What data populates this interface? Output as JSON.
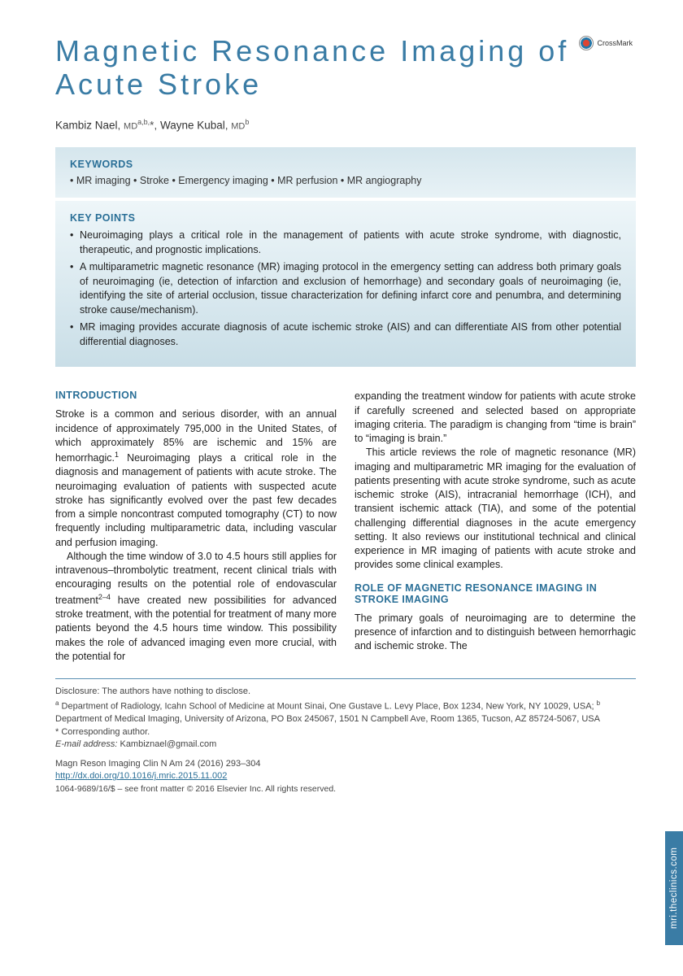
{
  "title": "Magnetic Resonance Imaging of Acute Stroke",
  "crossmark_label": "CrossMark",
  "authors_html": "Kambiz Nael, MD a,b,*, Wayne Kubal, MD b",
  "authors": [
    {
      "name": "Kambiz Nael",
      "degree": "MD",
      "affil": "a,b,",
      "corr": "*"
    },
    {
      "name": "Wayne Kubal",
      "degree": "MD",
      "affil": "b",
      "corr": ""
    }
  ],
  "keywords": {
    "label": "KEYWORDS",
    "line": "• MR imaging • Stroke • Emergency imaging • MR perfusion • MR angiography"
  },
  "keypoints": {
    "label": "KEY POINTS",
    "items": [
      "Neuroimaging plays a critical role in the management of patients with acute stroke syndrome, with diagnostic, therapeutic, and prognostic implications.",
      "A multiparametric magnetic resonance (MR) imaging protocol in the emergency setting can address both primary goals of neuroimaging (ie, detection of infarction and exclusion of hemorrhage) and secondary goals of neuroimaging (ie, identifying the site of arterial occlusion, tissue characterization for defining infarct core and penumbra, and determining stroke cause/mechanism).",
      "MR imaging provides accurate diagnosis of acute ischemic stroke (AIS) and can differentiate AIS from other potential differential diagnoses."
    ]
  },
  "body": {
    "intro_heading": "INTRODUCTION",
    "intro_p1_a": "Stroke is a common and serious disorder, with an annual incidence of approximately 795,000 in the United States, of which approximately 85% are ischemic and 15% are hemorrhagic.",
    "intro_p1_ref1": "1",
    "intro_p1_b": " Neuroimaging plays a critical role in the diagnosis and management of patients with acute stroke. The neuroimaging evaluation of patients with suspected acute stroke has significantly evolved over the past few decades from a simple noncontrast computed tomography (CT) to now frequently including multiparametric data, including vascular and perfusion imaging.",
    "intro_p2_a": "Although the time window of 3.0 to 4.5 hours still applies for intravenous–thrombolytic treatment, recent clinical trials with encouraging results on the potential role of endovascular treatment",
    "intro_p2_ref": "2–4",
    "intro_p2_b": " have created new possibilities for advanced stroke treatment, with the potential for treatment of many more patients beyond the 4.5 hours time window. This possibility makes the role of advanced imaging even more crucial, with the potential for",
    "col2_p1": "expanding the treatment window for patients with acute stroke if carefully screened and selected based on appropriate imaging criteria. The paradigm is changing from “time is brain” to “imaging is brain.”",
    "col2_p2": "This article reviews the role of magnetic resonance (MR) imaging and multiparametric MR imaging for the evaluation of patients presenting with acute stroke syndrome, such as acute ischemic stroke (AIS), intracranial hemorrhage (ICH), and transient ischemic attack (TIA), and some of the potential challenging differential diagnoses in the acute emergency setting. It also reviews our institutional technical and clinical experience in MR imaging of patients with acute stroke and provides some clinical examples.",
    "role_heading": "ROLE OF MAGNETIC RESONANCE IMAGING IN STROKE IMAGING",
    "role_p1": "The primary goals of neuroimaging are to determine the presence of infarction and to distinguish between hemorrhagic and ischemic stroke. The"
  },
  "footer": {
    "disclosure": "Disclosure: The authors have nothing to disclose.",
    "affil_a_sup": "a",
    "affil_a": " Department of Radiology, Icahn School of Medicine at Mount Sinai, One Gustave L. Levy Place, Box 1234, New York, NY 10029, USA; ",
    "affil_b_sup": "b",
    "affil_b": " Department of Medical Imaging, University of Arizona, PO Box 245067, 1501 N Campbell Ave, Room 1365, Tucson, AZ 85724-5067, USA",
    "corr": "* Corresponding author.",
    "email_label": "E-mail address:",
    "email": " Kambiznael@gmail.com",
    "journal": "Magn Reson Imaging Clin N Am 24 (2016) 293–304",
    "doi": "http://dx.doi.org/10.1016/j.mric.2015.11.002",
    "rights": "1064-9689/16/$ – see front matter © 2016 Elsevier Inc. All rights reserved."
  },
  "side_tab": "mri.theclinics.com",
  "colors": {
    "title": "#3a7ca5",
    "heading": "#2a6f97",
    "box_top": "#d5e6ed",
    "box_bottom": "#c9dee7",
    "text": "#222222",
    "tab_bg": "#3a7ca5"
  }
}
